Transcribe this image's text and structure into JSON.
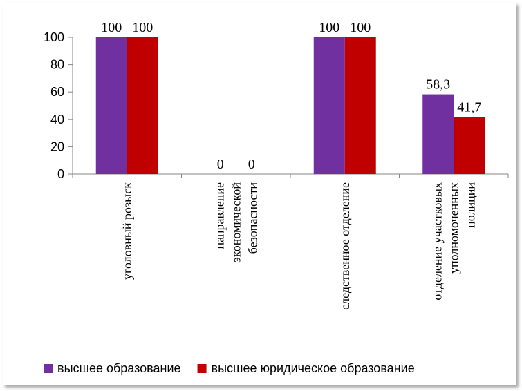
{
  "chart_data": {
    "type": "bar",
    "categories": [
      [
        "уголовный розыск"
      ],
      [
        "направление",
        "экономической",
        "безопасности"
      ],
      [
        "следственное отделение"
      ],
      [
        "отделение участковых",
        "уполномоченных",
        "полиции"
      ]
    ],
    "series": [
      {
        "name": "высшее образование",
        "color": "#7030a0",
        "values": [
          100,
          0,
          100,
          58.3
        ]
      },
      {
        "name": "высшее юридическое образование",
        "color": "#c00000",
        "values": [
          100,
          0,
          100,
          41.7
        ]
      }
    ],
    "data_labels": [
      [
        "100",
        "0",
        "100",
        "58,3"
      ],
      [
        "100",
        "0",
        "100",
        "41,7"
      ]
    ],
    "yticks": [
      0,
      20,
      40,
      60,
      80,
      100
    ],
    "ylim": [
      0,
      100
    ],
    "grid": false,
    "legend_position": "bottom"
  }
}
